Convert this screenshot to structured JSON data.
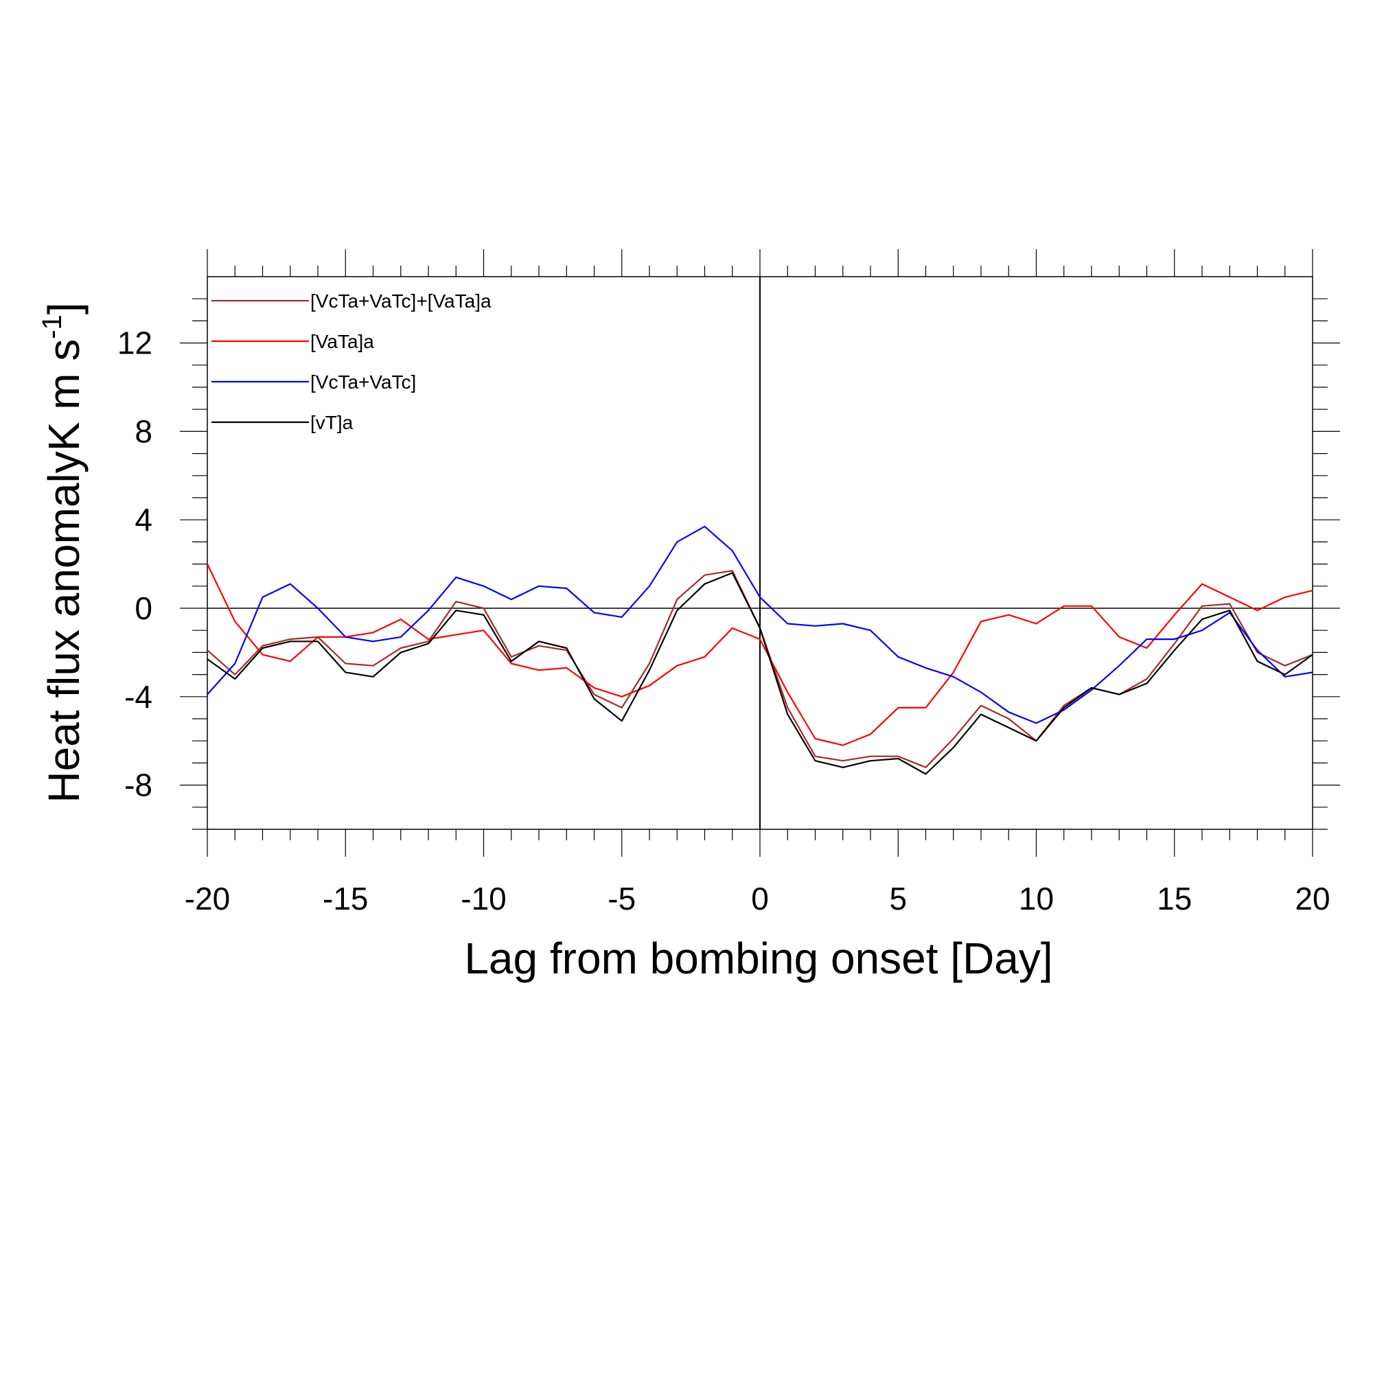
{
  "chart_data": {
    "type": "line",
    "xlabel": "Lag from bombing onset [Day]",
    "ylabel": {
      "main": "Heat flux anomalyK m s",
      "superscript": "-1",
      "suffix": "]"
    },
    "xlim": [
      -20,
      20
    ],
    "ylim": [
      -10,
      15
    ],
    "xticks": [
      -20,
      -15,
      -10,
      -5,
      0,
      5,
      10,
      15,
      20
    ],
    "xtick_labels": [
      "-20",
      "-15",
      "-10",
      "-5",
      "0",
      "5",
      "10",
      "15",
      "20"
    ],
    "yticks": [
      12,
      8,
      4,
      0,
      -4,
      -8
    ],
    "ytick_labels": [
      "12",
      "8",
      "4",
      "0",
      "-4",
      "-8"
    ],
    "reference_lines": {
      "horizontal_y": 0,
      "vertical_x": 0
    },
    "legend_position": "top-left",
    "x": [
      -20,
      -19,
      -18,
      -17,
      -16,
      -15,
      -14,
      -13,
      -12,
      -11,
      -10,
      -9,
      -8,
      -7,
      -6,
      -5,
      -4,
      -3,
      -2,
      -1,
      0,
      1,
      2,
      3,
      4,
      5,
      6,
      7,
      8,
      9,
      10,
      11,
      12,
      13,
      14,
      15,
      16,
      17,
      18,
      19,
      20
    ],
    "series": [
      {
        "name": "[VcTa+VaTc]+[VaTa]a",
        "color": "#a52a2a",
        "values": [
          -1.9,
          -3.0,
          -1.7,
          -1.4,
          -1.3,
          -2.5,
          -2.6,
          -1.8,
          -1.5,
          0.3,
          0.0,
          -2.2,
          -1.7,
          -1.9,
          -3.9,
          -4.5,
          -2.5,
          0.4,
          1.5,
          1.7,
          -0.9,
          -4.5,
          -6.7,
          -6.9,
          -6.7,
          -6.7,
          -7.2,
          -5.9,
          -4.4,
          -5.0,
          -6.0,
          -4.4,
          -3.6,
          -3.9,
          -3.2,
          -1.6,
          0.1,
          0.2,
          -2.0,
          -2.6,
          -2.1
        ]
      },
      {
        "name": "[VaTa]a",
        "color": "#ff0000",
        "values": [
          2.0,
          -0.6,
          -2.1,
          -2.4,
          -1.3,
          -1.3,
          -1.1,
          -0.5,
          -1.4,
          -1.2,
          -1.0,
          -2.5,
          -2.8,
          -2.7,
          -3.6,
          -4.0,
          -3.5,
          -2.6,
          -2.2,
          -0.9,
          -1.4,
          -3.8,
          -5.9,
          -6.2,
          -5.7,
          -4.5,
          -4.5,
          -2.9,
          -0.6,
          -0.3,
          -0.7,
          0.1,
          0.1,
          -1.3,
          -1.8,
          -0.3,
          1.1,
          0.5,
          -0.1,
          0.5,
          0.8
        ]
      },
      {
        "name": "[VcTa+VaTc]",
        "color": "#0000ff",
        "values": [
          -3.9,
          -2.5,
          0.5,
          1.1,
          0.0,
          -1.3,
          -1.5,
          -1.3,
          -0.1,
          1.4,
          1.0,
          0.4,
          1.0,
          0.9,
          -0.2,
          -0.4,
          1.0,
          3.0,
          3.7,
          2.6,
          0.5,
          -0.7,
          -0.8,
          -0.7,
          -1.0,
          -2.2,
          -2.7,
          -3.1,
          -3.8,
          -4.7,
          -5.2,
          -4.6,
          -3.7,
          -2.6,
          -1.4,
          -1.4,
          -1.0,
          -0.2,
          -1.9,
          -3.1,
          -2.9
        ]
      },
      {
        "name": "[vT]a",
        "color": "#000000",
        "values": [
          -2.3,
          -3.2,
          -1.8,
          -1.5,
          -1.5,
          -2.9,
          -3.1,
          -2.0,
          -1.6,
          -0.1,
          -0.3,
          -2.4,
          -1.5,
          -1.8,
          -4.1,
          -5.1,
          -2.8,
          -0.1,
          1.1,
          1.6,
          -0.9,
          -4.8,
          -6.9,
          -7.2,
          -6.9,
          -6.8,
          -7.5,
          -6.3,
          -4.8,
          -5.4,
          -6.0,
          -4.5,
          -3.6,
          -3.9,
          -3.4,
          -1.9,
          -0.5,
          -0.1,
          -2.4,
          -3.0,
          -2.1
        ]
      }
    ]
  }
}
